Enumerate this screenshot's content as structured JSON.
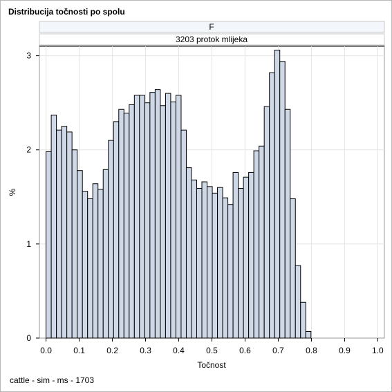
{
  "title": "Distribucija točnosti po spolu",
  "footnote": "cattle - sim - ms - 1703",
  "panel": {
    "header1": "F",
    "header2": "3203 protok mlijeka"
  },
  "chart_data": {
    "type": "bar",
    "histogram": true,
    "xlabel": "Točnost",
    "ylabel": "%",
    "xlim": [
      -0.02,
      1.02
    ],
    "ylim": [
      0,
      3.1
    ],
    "xticks": [
      "0.0",
      "0.1",
      "0.2",
      "0.3",
      "0.4",
      "0.5",
      "0.6",
      "0.7",
      "0.8",
      "0.9",
      "1.0"
    ],
    "yticks": [
      "0",
      "1",
      "2",
      "3"
    ],
    "grid": true,
    "bin_width": 0.01566,
    "bin_start": 0.0,
    "values": [
      1.98,
      2.37,
      2.21,
      2.25,
      2.19,
      2.0,
      1.78,
      1.56,
      1.48,
      1.64,
      1.58,
      1.79,
      2.1,
      2.3,
      2.43,
      2.39,
      2.48,
      2.58,
      2.58,
      2.5,
      2.61,
      2.64,
      2.47,
      2.6,
      2.51,
      2.58,
      2.21,
      1.81,
      1.68,
      1.59,
      1.66,
      1.61,
      1.54,
      1.6,
      1.49,
      1.42,
      1.76,
      1.59,
      1.71,
      1.76,
      1.99,
      2.04,
      2.46,
      2.82,
      3.06,
      2.94,
      2.43,
      1.48,
      0.77,
      0.38,
      0.07
    ],
    "colors": {
      "fill": "#cfd8e6",
      "stroke": "#000000"
    }
  }
}
